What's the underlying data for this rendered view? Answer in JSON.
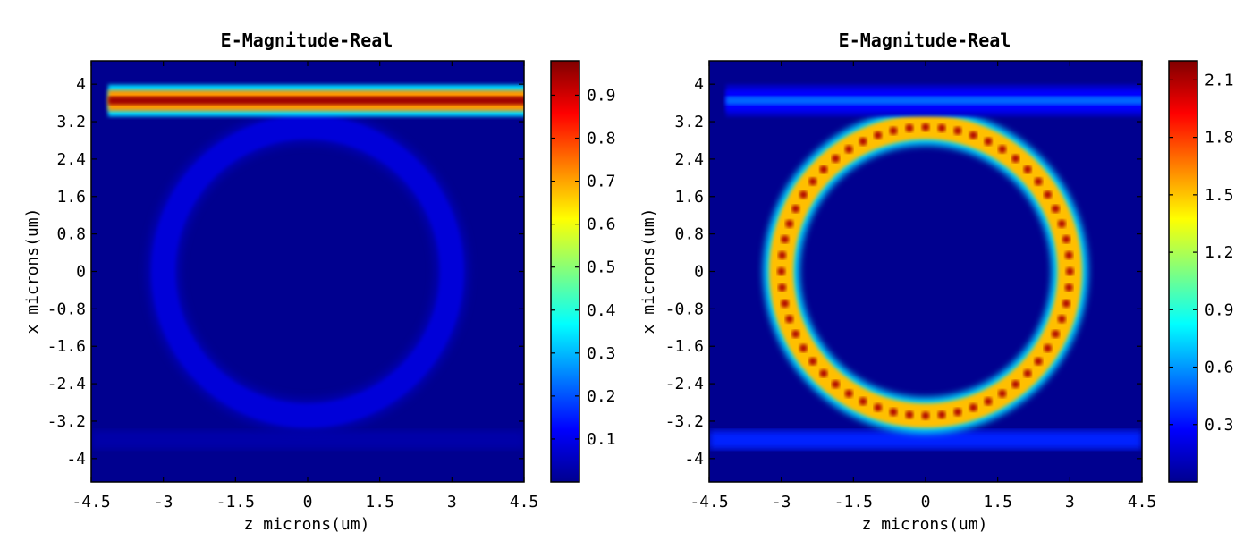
{
  "chart_data": [
    {
      "type": "heatmap",
      "title": "E-Magnitude-Real",
      "xlabel": "z microns(um)",
      "ylabel": "x microns(um)",
      "xlim": [
        -4.5,
        4.5
      ],
      "ylim": [
        -4.5,
        4.5
      ],
      "xticks": [
        "-4.5",
        "-3",
        "-1.5",
        "0",
        "1.5",
        "3",
        "4.5"
      ],
      "xtick_values": [
        -4.5,
        -3,
        -1.5,
        0,
        1.5,
        3,
        4.5
      ],
      "yticks": [
        "4",
        "3.2",
        "2.4",
        "1.6",
        "0.8",
        "0",
        "-0.8",
        "-1.6",
        "-2.4",
        "-3.2",
        "-4"
      ],
      "ytick_values": [
        4,
        3.2,
        2.4,
        1.6,
        0.8,
        0,
        -0.8,
        -1.6,
        -2.4,
        -3.2,
        -4
      ],
      "colorbar": {
        "range": [
          0,
          0.98
        ],
        "ticks": [
          "0.9",
          "0.8",
          "0.7",
          "0.6",
          "0.5",
          "0.4",
          "0.3",
          "0.2",
          "0.1"
        ],
        "tick_values": [
          0.9,
          0.8,
          0.7,
          0.6,
          0.5,
          0.4,
          0.3,
          0.2,
          0.1
        ]
      },
      "features": {
        "top_waveguide": {
          "x_center": 3.65,
          "z_start": -4.15,
          "z_end": 4.5,
          "peak_field": 0.95
        },
        "ring": {
          "outer_radius": 3.3,
          "inner_radius": 2.7,
          "peak_field": 0.12
        },
        "bottom_waveguide": {
          "x_center": -3.6,
          "peak_field": 0.04
        }
      }
    },
    {
      "type": "heatmap",
      "title": "E-Magnitude-Real",
      "xlabel": "z microns(um)",
      "ylabel": "x microns(um)",
      "xlim": [
        -4.5,
        4.5
      ],
      "ylim": [
        -4.5,
        4.5
      ],
      "xticks": [
        "-4.5",
        "-3",
        "-1.5",
        "0",
        "1.5",
        "3",
        "4.5"
      ],
      "xtick_values": [
        -4.5,
        -3,
        -1.5,
        0,
        1.5,
        3,
        4.5
      ],
      "yticks": [
        "4",
        "3.2",
        "2.4",
        "1.6",
        "0.8",
        "0",
        "-0.8",
        "-1.6",
        "-2.4",
        "-3.2",
        "-4"
      ],
      "ytick_values": [
        4,
        3.2,
        2.4,
        1.6,
        0.8,
        0,
        -0.8,
        -1.6,
        -2.4,
        -3.2,
        -4
      ],
      "colorbar": {
        "range": [
          0,
          2.2
        ],
        "ticks": [
          "2.1",
          "1.8",
          "1.5",
          "1.2",
          "0.9",
          "0.6",
          "0.3"
        ],
        "tick_values": [
          2.1,
          1.8,
          1.5,
          1.2,
          0.9,
          0.6,
          0.3
        ]
      },
      "features": {
        "top_waveguide": {
          "x_center": 3.65,
          "z_start": -4.15,
          "z_end": 4.5,
          "peak_field": 0.5
        },
        "ring": {
          "outer_radius": 3.3,
          "inner_radius": 2.7,
          "peak_field": 2.1
        },
        "bottom_waveguide": {
          "x_center": -3.6,
          "peak_field": 0.35
        }
      }
    }
  ]
}
